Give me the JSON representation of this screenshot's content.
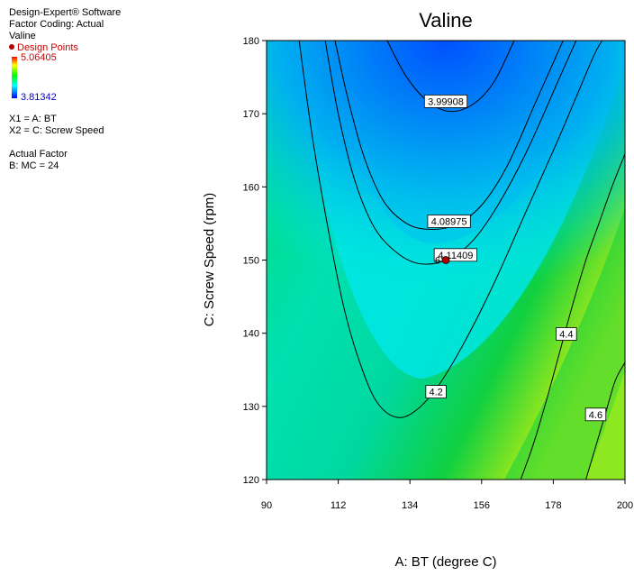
{
  "side_panel": {
    "software": "Design-Expert® Software",
    "factor_coding": "Factor Coding: Actual",
    "response": "Valine",
    "design_points_label": "Design Points",
    "legend_high": "5.06405",
    "legend_low": "3.81342",
    "x1": "X1 = A: BT",
    "x2": "X2 = C: Screw Speed",
    "actual_factor_title": "Actual Factor",
    "actual_factor_value": "B: MC = 24"
  },
  "colors": {
    "design_point": "#b30000",
    "legend_high_text": "#cc0000",
    "legend_low_text": "#0000cc"
  },
  "chart_data": {
    "type": "contour",
    "title": "Valine",
    "xlabel": "A: BT (degree C)",
    "ylabel": "C: Screw Speed (rpm)",
    "xlim": [
      90,
      200
    ],
    "ylim": [
      120,
      180
    ],
    "x_ticks": [
      "90",
      "112",
      "134",
      "156",
      "178",
      "200"
    ],
    "y_ticks": [
      "120",
      "130",
      "140",
      "150",
      "160",
      "170",
      "180"
    ],
    "color_range": [
      3.81342,
      5.06405
    ],
    "contours": [
      {
        "level": "3.99908",
        "label_at": [
          145,
          171.7
        ],
        "points": [
          [
            127,
            180
          ],
          [
            133,
            175
          ],
          [
            140,
            171.5
          ],
          [
            147,
            170.3
          ],
          [
            154,
            171.5
          ],
          [
            160,
            174.5
          ],
          [
            166,
            180
          ]
        ]
      },
      {
        "level": "4.08975",
        "label_at": [
          146,
          155.3
        ],
        "points": [
          [
            111,
            180
          ],
          [
            115,
            172
          ],
          [
            120,
            164
          ],
          [
            126,
            158
          ],
          [
            133,
            155
          ],
          [
            140,
            154.2
          ],
          [
            148,
            154.8
          ],
          [
            156,
            157.5
          ],
          [
            164,
            163
          ],
          [
            173,
            172
          ],
          [
            181,
            180
          ]
        ]
      },
      {
        "level": "4.11409",
        "label_at": [
          148,
          150.7
        ],
        "points": [
          [
            108,
            180
          ],
          [
            112,
            170
          ],
          [
            117,
            161
          ],
          [
            123,
            154.5
          ],
          [
            130,
            151
          ],
          [
            137,
            149.5
          ],
          [
            145,
            150
          ],
          [
            153,
            152.5
          ],
          [
            161,
            157.5
          ],
          [
            170,
            165
          ],
          [
            180,
            175
          ],
          [
            185,
            180
          ]
        ]
      },
      {
        "level": "4.2",
        "label_at": [
          142,
          132
        ],
        "points": [
          [
            100,
            180
          ],
          [
            104,
            167
          ],
          [
            109,
            154
          ],
          [
            114,
            143
          ],
          [
            119,
            135.5
          ],
          [
            124,
            130.5
          ],
          [
            130,
            128.5
          ],
          [
            136,
            129.5
          ],
          [
            143,
            133
          ],
          [
            151,
            139
          ],
          [
            160,
            147
          ],
          [
            170,
            157
          ],
          [
            180,
            167
          ],
          [
            190,
            177.5
          ],
          [
            193,
            180
          ]
        ]
      },
      {
        "level": "4.4",
        "label_at": [
          182,
          139.9
        ],
        "points": [
          [
            168,
            120
          ],
          [
            172,
            125
          ],
          [
            176,
            131
          ],
          [
            180,
            137.5
          ],
          [
            184,
            144
          ],
          [
            188,
            150
          ],
          [
            192,
            155
          ],
          [
            196,
            160
          ],
          [
            200,
            164.5
          ]
        ]
      },
      {
        "level": "4.6",
        "label_at": [
          191,
          128.9
        ],
        "points": [
          [
            188,
            120
          ],
          [
            191,
            124.5
          ],
          [
            194,
            129
          ],
          [
            197,
            133.5
          ],
          [
            200,
            136
          ]
        ]
      }
    ],
    "design_points": [
      {
        "x": 145,
        "y": 150,
        "label": "6"
      }
    ]
  }
}
